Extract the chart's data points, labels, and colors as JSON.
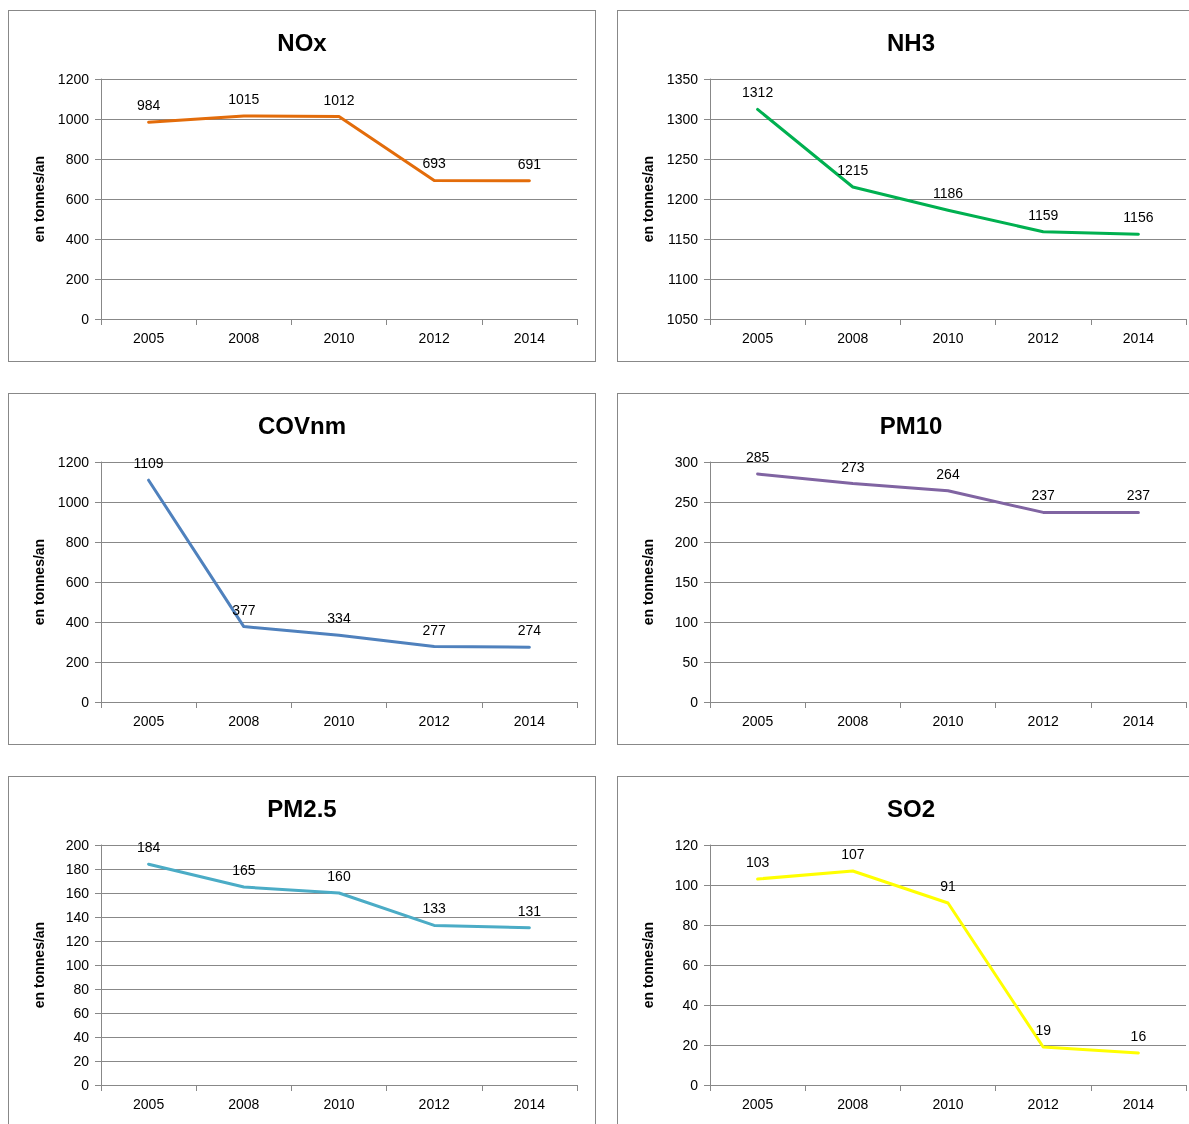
{
  "chart_data": [
    {
      "type": "line",
      "title": "NOx",
      "ylabel": "en tonnes/an",
      "categories": [
        "2005",
        "2008",
        "2010",
        "2012",
        "2014"
      ],
      "values": [
        984,
        1015,
        1012,
        693,
        691
      ],
      "color": "#e36c0a",
      "ylim": [
        0,
        1200
      ],
      "yticks": [
        0,
        200,
        400,
        600,
        800,
        1000,
        1200
      ],
      "grid": "y",
      "data_labels": true,
      "marker": "none"
    },
    {
      "type": "line",
      "title": "NH3",
      "ylabel": "en tonnes/an",
      "categories": [
        "2005",
        "2008",
        "2010",
        "2012",
        "2014"
      ],
      "values": [
        1312,
        1215,
        1186,
        1159,
        1156
      ],
      "color": "#00b050",
      "ylim": [
        1050,
        1350
      ],
      "yticks": [
        1050,
        1100,
        1150,
        1200,
        1250,
        1300,
        1350
      ],
      "grid": "y",
      "data_labels": true,
      "marker": "none"
    },
    {
      "type": "line",
      "title": "COVnm",
      "ylabel": "en tonnes/an",
      "categories": [
        "2005",
        "2008",
        "2010",
        "2012",
        "2014"
      ],
      "values": [
        1109,
        377,
        334,
        277,
        274
      ],
      "color": "#4f81bd",
      "ylim": [
        0,
        1200
      ],
      "yticks": [
        0,
        200,
        400,
        600,
        800,
        1000,
        1200
      ],
      "grid": "y",
      "data_labels": true,
      "marker": "none"
    },
    {
      "type": "line",
      "title": "PM10",
      "ylabel": "en tonnes/an",
      "categories": [
        "2005",
        "2008",
        "2010",
        "2012",
        "2014"
      ],
      "values": [
        285,
        273,
        264,
        237,
        237
      ],
      "color": "#8064a2",
      "ylim": [
        0,
        300
      ],
      "yticks": [
        0,
        50,
        100,
        150,
        200,
        250,
        300
      ],
      "grid": "y",
      "data_labels": true,
      "marker": "none"
    },
    {
      "type": "line",
      "title": "PM2.5",
      "ylabel": "en tonnes/an",
      "categories": [
        "2005",
        "2008",
        "2010",
        "2012",
        "2014"
      ],
      "values": [
        184,
        165,
        160,
        133,
        131
      ],
      "color": "#4bacc6",
      "ylim": [
        0,
        200
      ],
      "yticks": [
        0,
        20,
        40,
        60,
        80,
        100,
        120,
        140,
        160,
        180,
        200
      ],
      "grid": "y",
      "data_labels": true,
      "marker": "none"
    },
    {
      "type": "line",
      "title": "SO2",
      "ylabel": "en tonnes/an",
      "categories": [
        "2005",
        "2008",
        "2010",
        "2012",
        "2014"
      ],
      "values": [
        103,
        107,
        91,
        19,
        16
      ],
      "color": "#ffff00",
      "ylim": [
        0,
        120
      ],
      "yticks": [
        0,
        20,
        40,
        60,
        80,
        100,
        120
      ],
      "grid": "y",
      "data_labels": true,
      "marker": "none"
    }
  ]
}
